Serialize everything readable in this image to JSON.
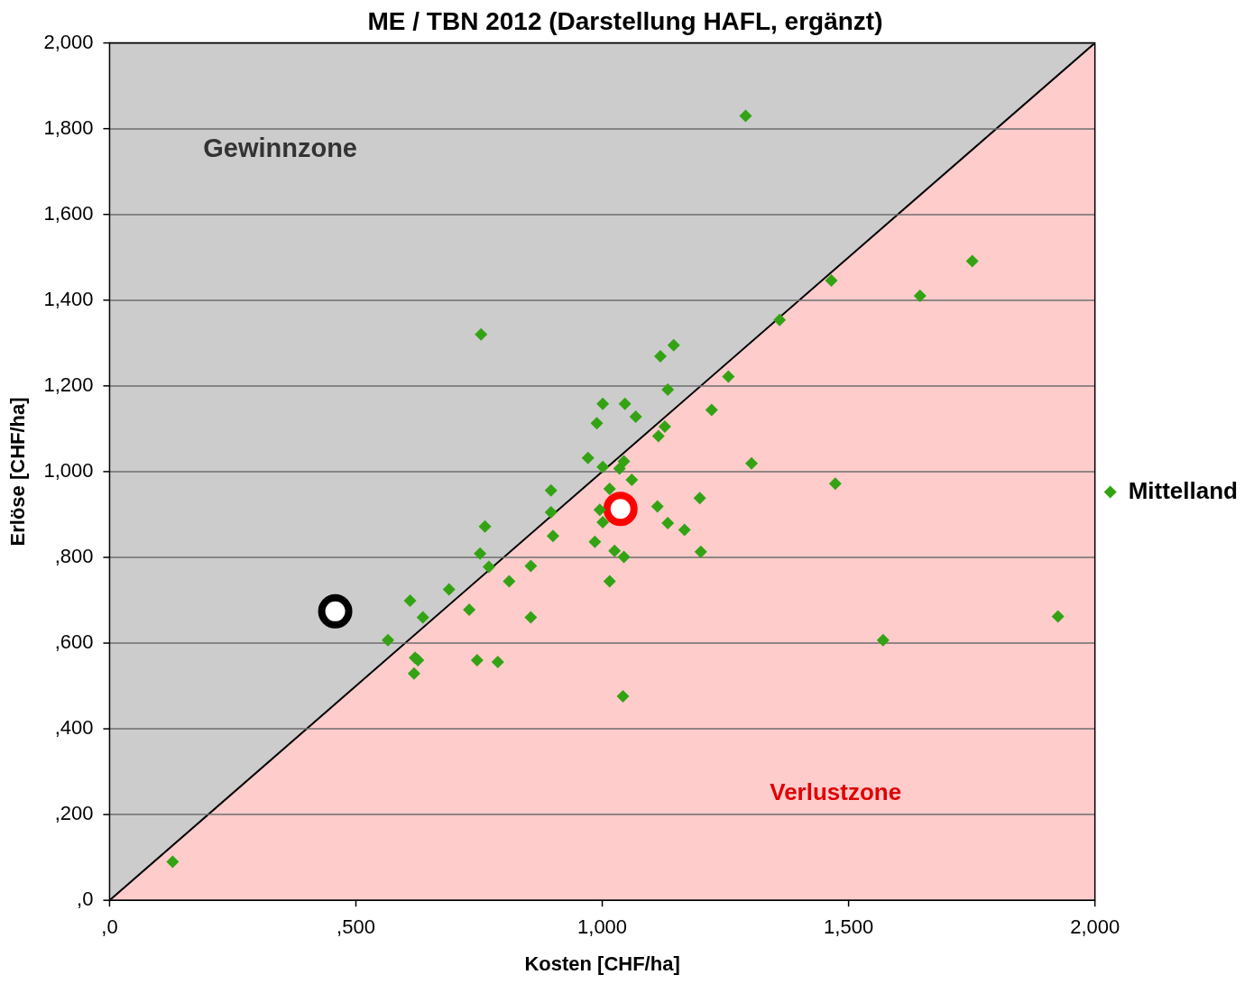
{
  "chart_data": {
    "type": "scatter",
    "title": "ME / TBN 2012 (Darstellung HAFL, ergänzt)",
    "xlabel": "Kosten [CHF/ha]",
    "ylabel": "Erlöse [CHF/ha]",
    "xlim": [
      0,
      2000
    ],
    "ylim": [
      0,
      2000
    ],
    "xticks": [
      {
        "value": 0,
        "label": ",0"
      },
      {
        "value": 500,
        "label": ",500"
      },
      {
        "value": 1000,
        "label": "1,000"
      },
      {
        "value": 1500,
        "label": "1,500"
      },
      {
        "value": 2000,
        "label": "2,000"
      }
    ],
    "yticks": [
      {
        "value": 0,
        "label": ",0"
      },
      {
        "value": 200,
        "label": ",200"
      },
      {
        "value": 400,
        "label": ",400"
      },
      {
        "value": 600,
        "label": ",600"
      },
      {
        "value": 800,
        "label": ",800"
      },
      {
        "value": 1000,
        "label": "1,000"
      },
      {
        "value": 1200,
        "label": "1,200"
      },
      {
        "value": 1400,
        "label": "1,400"
      },
      {
        "value": 1600,
        "label": "1,600"
      },
      {
        "value": 1800,
        "label": "1,800"
      },
      {
        "value": 2000,
        "label": "2,000"
      }
    ],
    "grid": "y",
    "legend": "right",
    "annotations": [
      "Gewinnzone",
      "Verlustzone"
    ],
    "series": [
      {
        "type": "area",
        "color": "#ffcccc",
        "x": [
          0,
          2000
        ],
        "values": [
          0,
          2000
        ]
      },
      {
        "name": "Mittelland",
        "color": "#33a314",
        "marker": "diamond",
        "x": [
          128,
          1291,
          1751,
          1465,
          1645,
          1360,
          754,
          1145,
          1118,
          1256,
          1133,
          1001,
          1046,
          1068,
          1222,
          989,
          1127,
          1114,
          971,
          1001,
          1044,
          1035,
          1303,
          1060,
          896,
          1015,
          1473,
          1198,
          1112,
          896,
          995,
          1001,
          1133,
          762,
          1167,
          900,
          985,
          752,
          1025,
          1044,
          1200,
          770,
          855,
          811,
          1015,
          689,
          610,
          636,
          730,
          855,
          565,
          1570,
          1925,
          620,
          626,
          746,
          788,
          618,
          1042
        ],
        "values": [
          90,
          1830,
          1491,
          1446,
          1410,
          1354,
          1320,
          1295,
          1269,
          1222,
          1191,
          1158,
          1158,
          1128,
          1144,
          1113,
          1105,
          1083,
          1032,
          1011,
          1024,
          1007,
          1019,
          981,
          956,
          960,
          972,
          938,
          919,
          905,
          911,
          882,
          880,
          872,
          864,
          850,
          836,
          809,
          815,
          801,
          813,
          778,
          780,
          744,
          744,
          725,
          699,
          660,
          678,
          660,
          607,
          607,
          662,
          566,
          560,
          560,
          556,
          529,
          476
        ]
      },
      {
        "color": "#000000",
        "marker": "circle",
        "x": [
          458
        ],
        "values": [
          674
        ]
      },
      {
        "color": "#ff0000",
        "marker": "circle",
        "x": [
          1037
        ],
        "values": [
          913
        ]
      }
    ]
  }
}
